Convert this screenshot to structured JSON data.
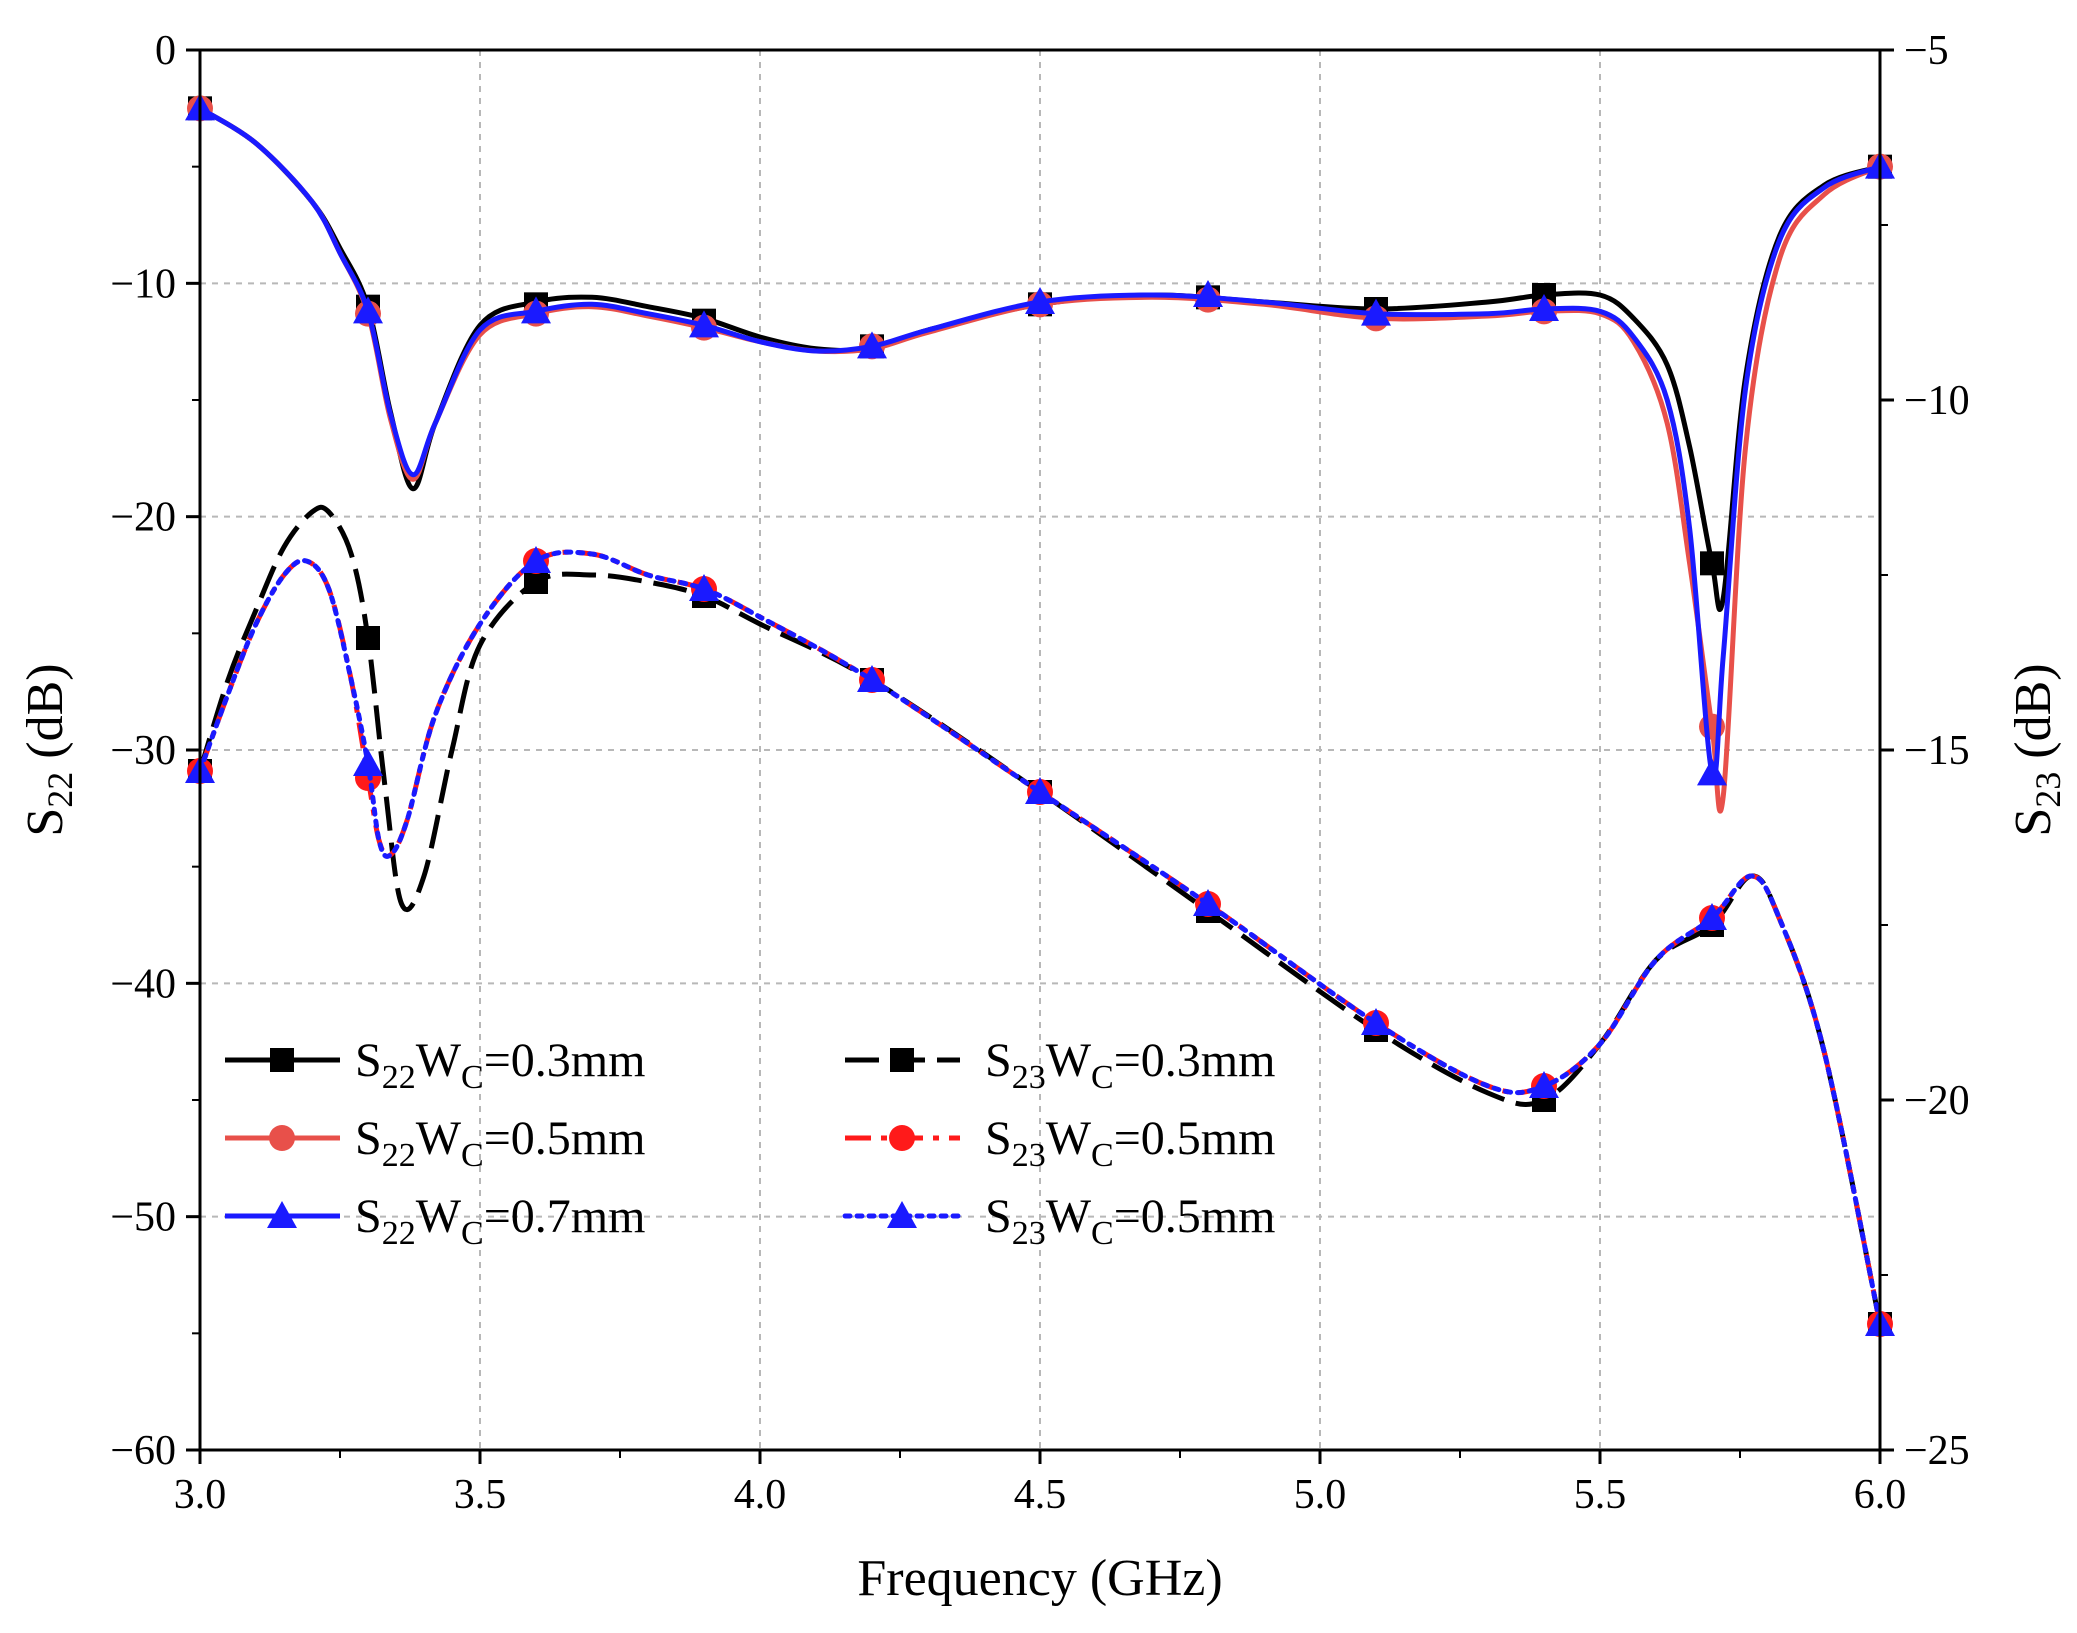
{
  "chart_data": {
    "type": "line",
    "xlabel": "Frequency (GHz)",
    "xlim": [
      3.0,
      6.0
    ],
    "xticks": [
      3.0,
      3.5,
      4.0,
      4.5,
      5.0,
      5.5,
      6.0
    ],
    "xtick_labels": [
      "3.0",
      "3.5",
      "4.0",
      "4.5",
      "5.0",
      "5.5",
      "6.0"
    ],
    "left_axis": {
      "label_main": "S",
      "label_sub": "22",
      "label_unit": " (dB)",
      "ylim": [
        -60,
        0
      ],
      "ticks": [
        0,
        -10,
        -20,
        -30,
        -40,
        -50,
        -60
      ],
      "tick_labels": [
        "0",
        "−10",
        "−20",
        "−30",
        "−40",
        "−50",
        "−60"
      ]
    },
    "right_axis": {
      "label_main": "S",
      "label_sub": "23",
      "label_unit": " (dB)",
      "ylim": [
        -25,
        -5
      ],
      "ticks": [
        -5,
        -10,
        -15,
        -20,
        -25
      ],
      "tick_labels": [
        "−5",
        "−10",
        "−15",
        "−20",
        "−25"
      ]
    },
    "grid": true,
    "legend_position": "lower-left",
    "series": [
      {
        "name": "S22WC=0.3mm",
        "label_main": "S",
        "label_sub": "22",
        "label_mid": "W",
        "label_sub2": "C",
        "label_tail": "=0.3mm",
        "axis": "left",
        "color": "#000000",
        "dash": "solid",
        "marker": "square",
        "x": [
          3.0,
          3.1,
          3.2,
          3.25,
          3.3,
          3.34,
          3.38,
          3.42,
          3.5,
          3.6,
          3.7,
          3.8,
          3.9,
          4.0,
          4.1,
          4.2,
          4.3,
          4.5,
          4.7,
          4.9,
          5.1,
          5.3,
          5.4,
          5.5,
          5.56,
          5.62,
          5.66,
          5.7,
          5.72,
          5.76,
          5.82,
          5.9,
          6.0
        ],
        "y": [
          -2.5,
          -4.0,
          -6.5,
          -8.5,
          -11.0,
          -15.5,
          -18.8,
          -16.0,
          -11.8,
          -10.8,
          -10.6,
          -11.0,
          -11.5,
          -12.3,
          -12.8,
          -12.8,
          -12.0,
          -10.9,
          -10.5,
          -10.8,
          -11.1,
          -10.8,
          -10.5,
          -10.5,
          -11.5,
          -13.5,
          -17.0,
          -22.0,
          -23.5,
          -14.0,
          -8.0,
          -5.8,
          -5.0
        ],
        "marker_x": [
          3.0,
          3.3,
          3.6,
          3.9,
          4.2,
          4.5,
          4.8,
          5.1,
          5.4,
          5.7,
          6.0
        ],
        "marker_y": [
          -2.5,
          -11.0,
          -10.9,
          -11.6,
          -12.7,
          -10.9,
          -10.6,
          -11.1,
          -10.5,
          -22.0,
          -5.0
        ]
      },
      {
        "name": "S22WC=0.5mm",
        "label_main": "S",
        "label_sub": "22",
        "label_mid": "W",
        "label_sub2": "C",
        "label_tail": "=0.5mm",
        "axis": "left",
        "color": "#e8504a",
        "dash": "solid",
        "marker": "circle",
        "x": [
          3.0,
          3.1,
          3.2,
          3.25,
          3.3,
          3.34,
          3.38,
          3.42,
          3.5,
          3.6,
          3.7,
          3.8,
          3.9,
          4.0,
          4.1,
          4.2,
          4.3,
          4.5,
          4.7,
          4.9,
          5.1,
          5.3,
          5.4,
          5.5,
          5.56,
          5.62,
          5.66,
          5.7,
          5.72,
          5.76,
          5.82,
          5.9,
          6.0
        ],
        "y": [
          -2.5,
          -4.0,
          -6.5,
          -8.7,
          -11.3,
          -15.8,
          -18.4,
          -16.0,
          -12.2,
          -11.3,
          -11.0,
          -11.4,
          -11.9,
          -12.5,
          -12.9,
          -12.8,
          -12.1,
          -10.9,
          -10.6,
          -10.9,
          -11.5,
          -11.4,
          -11.2,
          -11.3,
          -12.5,
          -16.0,
          -22.0,
          -29.0,
          -32.0,
          -17.0,
          -9.0,
          -6.2,
          -5.0
        ],
        "marker_x": [
          3.0,
          3.3,
          3.6,
          3.9,
          4.2,
          4.5,
          4.8,
          5.1,
          5.4,
          5.7,
          6.0
        ],
        "marker_y": [
          -2.5,
          -11.3,
          -11.3,
          -11.9,
          -12.7,
          -10.9,
          -10.7,
          -11.5,
          -11.2,
          -29.0,
          -5.0
        ]
      },
      {
        "name": "S22WC=0.7mm",
        "label_main": "S",
        "label_sub": "22",
        "label_mid": "W",
        "label_sub2": "C",
        "label_tail": "=0.7mm",
        "axis": "left",
        "color": "#1a1aff",
        "dash": "solid",
        "marker": "triangle",
        "x": [
          3.0,
          3.1,
          3.2,
          3.25,
          3.3,
          3.34,
          3.38,
          3.42,
          3.5,
          3.6,
          3.7,
          3.8,
          3.9,
          4.0,
          4.1,
          4.2,
          4.3,
          4.5,
          4.7,
          4.9,
          5.1,
          5.3,
          5.4,
          5.5,
          5.56,
          5.62,
          5.66,
          5.7,
          5.72,
          5.76,
          5.82,
          5.9,
          6.0
        ],
        "y": [
          -2.5,
          -4.0,
          -6.5,
          -8.7,
          -11.2,
          -15.6,
          -18.2,
          -16.0,
          -12.0,
          -11.2,
          -10.9,
          -11.3,
          -11.8,
          -12.5,
          -12.9,
          -12.7,
          -12.0,
          -10.8,
          -10.5,
          -10.8,
          -11.3,
          -11.3,
          -11.1,
          -11.2,
          -12.3,
          -15.0,
          -20.5,
          -31.0,
          -26.0,
          -14.5,
          -8.2,
          -5.9,
          -5.0
        ],
        "marker_x": [
          3.0,
          3.3,
          3.6,
          3.9,
          4.2,
          4.5,
          4.8,
          5.1,
          5.4,
          5.7,
          6.0
        ],
        "marker_y": [
          -2.5,
          -11.2,
          -11.2,
          -11.8,
          -12.7,
          -10.8,
          -10.5,
          -11.3,
          -11.1,
          -31.0,
          -5.0
        ]
      },
      {
        "name": "S23WC=0.3mm",
        "label_main": "S",
        "label_sub": "23",
        "label_mid": "W",
        "label_sub2": "C",
        "label_tail": "=0.3mm",
        "axis": "right",
        "color": "#000000",
        "dash": "dashed",
        "marker": "square",
        "x": [
          3.0,
          3.05,
          3.1,
          3.15,
          3.2,
          3.23,
          3.27,
          3.3,
          3.33,
          3.36,
          3.4,
          3.45,
          3.5,
          3.6,
          3.7,
          3.8,
          3.9,
          4.0,
          4.2,
          4.5,
          4.8,
          5.1,
          5.3,
          5.4,
          5.5,
          5.6,
          5.7,
          5.77,
          5.82,
          5.9,
          6.0
        ],
        "y": [
          -15.3,
          -14.0,
          -13.0,
          -12.1,
          -11.6,
          -11.6,
          -12.2,
          -13.4,
          -15.5,
          -17.2,
          -16.8,
          -15.0,
          -13.5,
          -12.6,
          -12.5,
          -12.6,
          -12.8,
          -13.2,
          -14.0,
          -15.6,
          -17.3,
          -19.0,
          -19.9,
          -20.0,
          -19.2,
          -18.0,
          -17.5,
          -16.8,
          -17.4,
          -19.3,
          -23.2
        ],
        "marker_x": [
          3.0,
          3.3,
          3.6,
          3.9,
          4.2,
          4.5,
          4.8,
          5.1,
          5.4,
          5.7,
          6.0
        ],
        "marker_y": [
          -15.3,
          -13.4,
          -12.6,
          -12.8,
          -14.0,
          -15.6,
          -17.3,
          -19.0,
          -20.0,
          -17.5,
          -23.2
        ]
      },
      {
        "name": "S23WC=0.5mm",
        "label_main": "S",
        "label_sub": "23",
        "label_mid": "W",
        "label_sub2": "C",
        "label_tail": "=0.5mm",
        "axis": "right",
        "color": "#ff1a1a",
        "dash": "dashdot",
        "marker": "circle",
        "x": [
          3.0,
          3.05,
          3.1,
          3.15,
          3.19,
          3.23,
          3.27,
          3.3,
          3.32,
          3.34,
          3.37,
          3.42,
          3.5,
          3.6,
          3.7,
          3.8,
          3.9,
          4.0,
          4.2,
          4.5,
          4.8,
          5.1,
          5.3,
          5.4,
          5.5,
          5.6,
          5.7,
          5.77,
          5.82,
          5.9,
          6.0
        ],
        "y": [
          -15.3,
          -14.2,
          -13.2,
          -12.5,
          -12.3,
          -12.7,
          -14.0,
          -15.4,
          -16.3,
          -16.5,
          -16.0,
          -14.5,
          -13.2,
          -12.3,
          -12.2,
          -12.5,
          -12.7,
          -13.1,
          -14.0,
          -15.6,
          -17.2,
          -18.9,
          -19.8,
          -19.8,
          -19.2,
          -18.0,
          -17.4,
          -16.8,
          -17.4,
          -19.3,
          -23.2
        ],
        "marker_x": [
          3.0,
          3.3,
          3.6,
          3.9,
          4.2,
          4.5,
          4.8,
          5.1,
          5.4,
          5.7,
          6.0
        ],
        "marker_y": [
          -15.3,
          -15.4,
          -12.3,
          -12.7,
          -14.0,
          -15.6,
          -17.2,
          -18.9,
          -19.8,
          -17.4,
          -23.2
        ]
      },
      {
        "name": "S23WC=0.5mm",
        "label_main": "S",
        "label_sub": "23",
        "label_mid": "W",
        "label_sub2": "C",
        "label_tail": "=0.5mm",
        "axis": "right",
        "color": "#1a1aff",
        "dash": "dotted",
        "marker": "triangle",
        "x": [
          3.0,
          3.05,
          3.1,
          3.15,
          3.19,
          3.23,
          3.27,
          3.3,
          3.32,
          3.34,
          3.37,
          3.42,
          3.5,
          3.6,
          3.7,
          3.8,
          3.9,
          4.0,
          4.2,
          4.5,
          4.8,
          5.1,
          5.3,
          5.4,
          5.5,
          5.6,
          5.7,
          5.77,
          5.82,
          5.9,
          6.0
        ],
        "y": [
          -15.3,
          -14.2,
          -13.2,
          -12.5,
          -12.3,
          -12.7,
          -14.0,
          -15.2,
          -16.3,
          -16.5,
          -16.0,
          -14.5,
          -13.2,
          -12.3,
          -12.2,
          -12.5,
          -12.7,
          -13.1,
          -14.0,
          -15.6,
          -17.2,
          -18.9,
          -19.8,
          -19.8,
          -19.2,
          -18.0,
          -17.4,
          -16.8,
          -17.4,
          -19.3,
          -23.2
        ],
        "marker_x": [
          3.0,
          3.3,
          3.6,
          3.9,
          4.2,
          4.5,
          4.8,
          5.1,
          5.4,
          5.7,
          6.0
        ],
        "marker_y": [
          -15.3,
          -15.2,
          -12.3,
          -12.7,
          -14.0,
          -15.6,
          -17.2,
          -18.9,
          -19.8,
          -17.4,
          -23.2
        ]
      }
    ]
  }
}
